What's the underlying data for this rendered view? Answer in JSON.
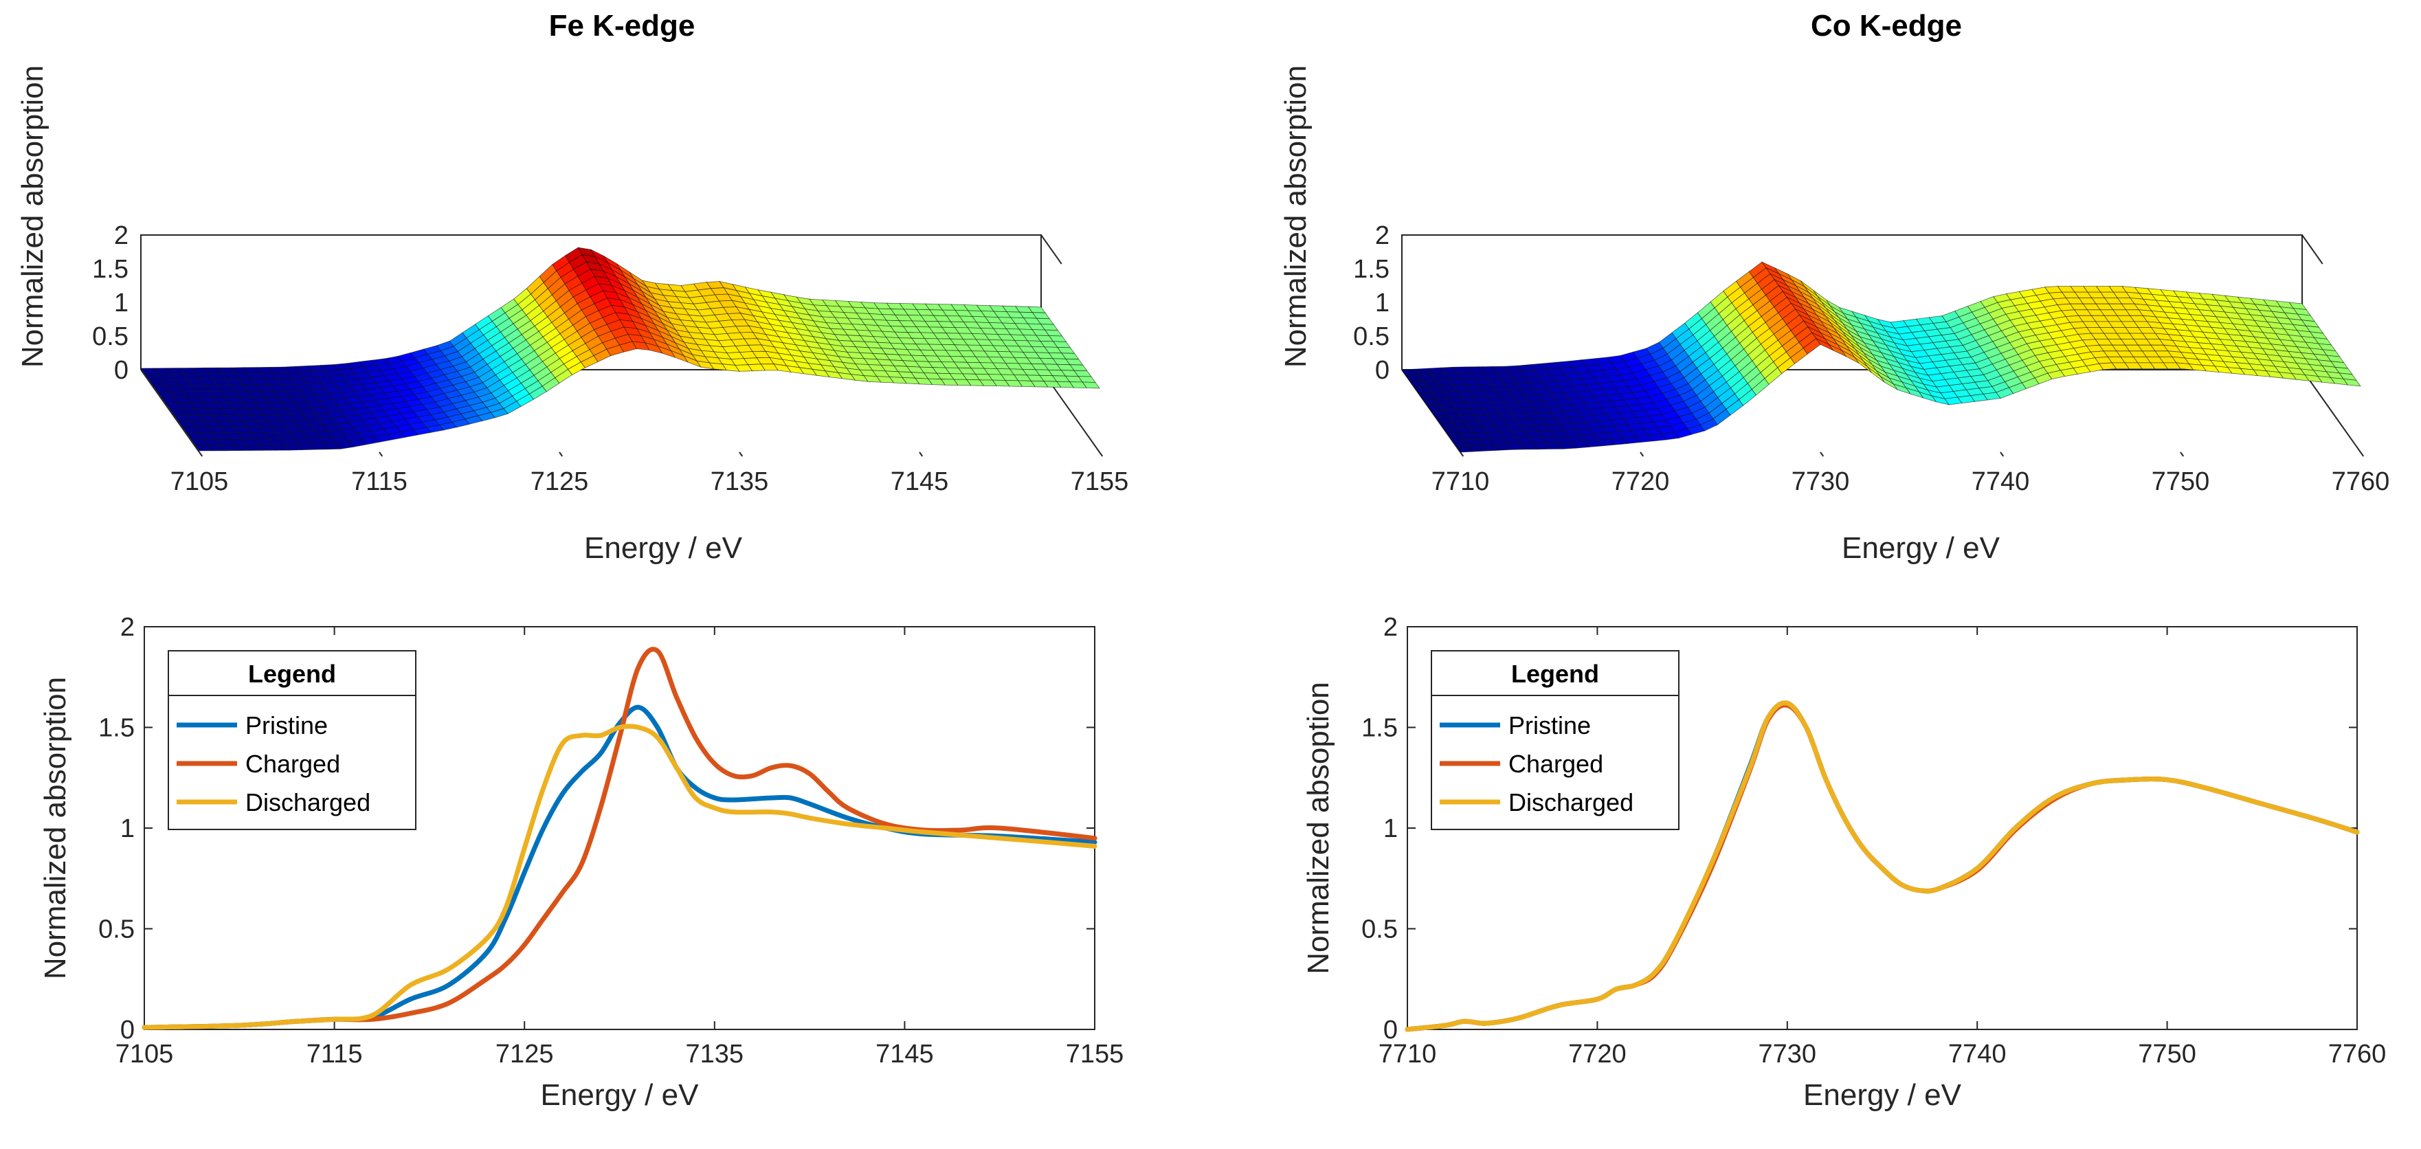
{
  "chart_data": [
    {
      "id": "fe3d",
      "type": "surface",
      "title": "Fe K-edge",
      "xlabel": "Energy / eV",
      "ylabel": "Normalized absorption",
      "xlim": [
        7105,
        7155
      ],
      "zlim": [
        0,
        2
      ],
      "xticks": [
        "7105",
        "7115",
        "7125",
        "7135",
        "7145",
        "7155"
      ],
      "zticks": [
        "2",
        "1.5",
        "1",
        "0.5",
        "0"
      ],
      "front_profile": {
        "x": [
          7105,
          7110,
          7113,
          7116,
          7119,
          7122,
          7124,
          7126,
          7128,
          7129.5,
          7131,
          7133,
          7135,
          7137,
          7139,
          7142,
          7146,
          7150,
          7155
        ],
        "y": [
          0.02,
          0.03,
          0.05,
          0.2,
          0.35,
          0.55,
          0.85,
          1.2,
          1.45,
          1.55,
          1.45,
          1.25,
          1.2,
          1.22,
          1.15,
          1.05,
          1.0,
          0.98,
          0.95
        ]
      },
      "back_profile": {
        "x": [
          7105,
          7110,
          7113,
          7116,
          7119,
          7122,
          7124,
          7126,
          7128,
          7129.5,
          7131,
          7133,
          7135,
          7137,
          7139,
          7142,
          7146,
          7150,
          7155
        ],
        "y": [
          0.02,
          0.03,
          0.04,
          0.08,
          0.18,
          0.4,
          0.75,
          1.1,
          1.6,
          1.85,
          1.65,
          1.3,
          1.25,
          1.32,
          1.2,
          1.05,
          0.99,
          0.97,
          0.93
        ]
      }
    },
    {
      "id": "co3d",
      "type": "surface",
      "title": "Co K-edge",
      "xlabel": "Energy / eV",
      "ylabel": "Normalized absorption",
      "xlim": [
        7710,
        7760
      ],
      "zlim": [
        0,
        2
      ],
      "xticks": [
        "7710",
        "7720",
        "7730",
        "7740",
        "7750",
        "7760"
      ],
      "zticks": [
        "2",
        "1.5",
        "1",
        "0.5",
        "0"
      ],
      "front_profile": {
        "x": [
          7710,
          7713,
          7716,
          7719,
          7722,
          7724,
          7726,
          7728,
          7730,
          7732,
          7734,
          7737,
          7740,
          7743,
          7746,
          7750,
          7755,
          7760
        ],
        "y": [
          0.0,
          0.04,
          0.05,
          0.12,
          0.2,
          0.35,
          0.75,
          1.2,
          1.6,
          1.35,
          0.95,
          0.7,
          0.8,
          1.1,
          1.24,
          1.24,
          1.12,
          0.98
        ]
      },
      "back_profile": {
        "x": [
          7710,
          7713,
          7716,
          7719,
          7722,
          7724,
          7726,
          7728,
          7730,
          7732,
          7734,
          7737,
          7740,
          7743,
          7746,
          7750,
          7755,
          7760
        ],
        "y": [
          0.0,
          0.04,
          0.05,
          0.12,
          0.2,
          0.35,
          0.75,
          1.2,
          1.6,
          1.35,
          0.95,
          0.7,
          0.8,
          1.1,
          1.24,
          1.24,
          1.12,
          0.98
        ]
      }
    },
    {
      "id": "fe2d",
      "type": "line",
      "title": "",
      "xlabel": "Energy / eV",
      "ylabel": "Normalized absorption",
      "xlim": [
        7105,
        7155
      ],
      "ylim": [
        0,
        2
      ],
      "xticks": [
        "7105",
        "7115",
        "7125",
        "7135",
        "7145",
        "7155"
      ],
      "yticks": [
        "0",
        "0.5",
        "1",
        "1.5",
        "2"
      ],
      "legend": {
        "title": "Legend",
        "position": "top-left"
      },
      "series": [
        {
          "name": "Pristine",
          "color": "#0072BD",
          "x": [
            7105,
            7110,
            7113,
            7115,
            7117,
            7119,
            7121,
            7123,
            7124,
            7125,
            7126,
            7127,
            7128,
            7129,
            7130,
            7131,
            7132,
            7133,
            7134,
            7135,
            7136,
            7138,
            7139,
            7140,
            7142,
            7144,
            7146,
            7150,
            7155
          ],
          "y": [
            0.01,
            0.02,
            0.04,
            0.05,
            0.06,
            0.15,
            0.22,
            0.38,
            0.55,
            0.78,
            1.0,
            1.17,
            1.28,
            1.37,
            1.52,
            1.6,
            1.5,
            1.3,
            1.2,
            1.15,
            1.14,
            1.15,
            1.15,
            1.12,
            1.05,
            1.0,
            0.97,
            0.96,
            0.93
          ]
        },
        {
          "name": "Charged",
          "color": "#D95319",
          "x": [
            7105,
            7110,
            7113,
            7115,
            7117,
            7119,
            7121,
            7123,
            7124,
            7125,
            7126,
            7127,
            7128,
            7129,
            7130,
            7131,
            7132,
            7133,
            7134,
            7135,
            7136,
            7137,
            7138,
            7139,
            7140,
            7141,
            7142,
            7144,
            7146,
            7148,
            7150,
            7155
          ],
          "y": [
            0.01,
            0.02,
            0.04,
            0.05,
            0.05,
            0.08,
            0.13,
            0.25,
            0.32,
            0.42,
            0.55,
            0.68,
            0.82,
            1.1,
            1.45,
            1.8,
            1.88,
            1.65,
            1.45,
            1.32,
            1.26,
            1.26,
            1.3,
            1.31,
            1.27,
            1.18,
            1.1,
            1.02,
            0.99,
            0.99,
            1.0,
            0.95
          ]
        },
        {
          "name": "Discharged",
          "color": "#EDB120",
          "x": [
            7105,
            7110,
            7113,
            7115,
            7117,
            7119,
            7121,
            7123,
            7124,
            7125,
            7126,
            7127,
            7128,
            7129,
            7130,
            7131,
            7132,
            7133,
            7134,
            7135,
            7136,
            7138,
            7139,
            7140,
            7142,
            7144,
            7146,
            7150,
            7155
          ],
          "y": [
            0.01,
            0.02,
            0.04,
            0.05,
            0.07,
            0.22,
            0.3,
            0.45,
            0.6,
            0.9,
            1.2,
            1.42,
            1.46,
            1.46,
            1.5,
            1.5,
            1.45,
            1.3,
            1.15,
            1.1,
            1.08,
            1.08,
            1.07,
            1.05,
            1.02,
            1.0,
            0.98,
            0.95,
            0.91
          ]
        }
      ]
    },
    {
      "id": "co2d",
      "type": "line",
      "title": "",
      "xlabel": "Energy / eV",
      "ylabel": "Normalized absoption",
      "xlim": [
        7710,
        7760
      ],
      "ylim": [
        0,
        2
      ],
      "xticks": [
        "7710",
        "7720",
        "7730",
        "7740",
        "7750",
        "7760"
      ],
      "yticks": [
        "0",
        "0.5",
        "1",
        "1.5",
        "2"
      ],
      "legend": {
        "title": "Legend",
        "position": "top-left"
      },
      "series": [
        {
          "name": "Pristine",
          "color": "#0072BD",
          "x": [
            7710,
            7712,
            7713,
            7714,
            7715,
            7716,
            7718,
            7720,
            7721,
            7722,
            7723,
            7724,
            7726,
            7728,
            7729,
            7730,
            7731,
            7732,
            7733,
            7734,
            7735,
            7736,
            7737,
            7738,
            7740,
            7742,
            7744,
            7746,
            7748,
            7750,
            7752,
            7755,
            7758,
            7760
          ],
          "y": [
            0.0,
            0.02,
            0.04,
            0.03,
            0.04,
            0.06,
            0.12,
            0.15,
            0.2,
            0.22,
            0.28,
            0.42,
            0.82,
            1.3,
            1.55,
            1.62,
            1.5,
            1.25,
            1.05,
            0.9,
            0.8,
            0.72,
            0.69,
            0.7,
            0.8,
            1.0,
            1.15,
            1.22,
            1.24,
            1.24,
            1.2,
            1.12,
            1.04,
            0.98
          ]
        },
        {
          "name": "Charged",
          "color": "#D95319",
          "x": [
            7710,
            7712,
            7713,
            7714,
            7715,
            7716,
            7718,
            7720,
            7721,
            7722,
            7723,
            7724,
            7726,
            7728,
            7729,
            7730,
            7731,
            7732,
            7733,
            7734,
            7735,
            7736,
            7737,
            7738,
            7740,
            7742,
            7744,
            7746,
            7748,
            7750,
            7752,
            7755,
            7758,
            7760
          ],
          "y": [
            0.0,
            0.02,
            0.04,
            0.03,
            0.04,
            0.06,
            0.12,
            0.15,
            0.2,
            0.22,
            0.27,
            0.41,
            0.8,
            1.28,
            1.54,
            1.61,
            1.5,
            1.25,
            1.05,
            0.9,
            0.8,
            0.72,
            0.69,
            0.7,
            0.79,
            0.99,
            1.14,
            1.22,
            1.24,
            1.24,
            1.2,
            1.12,
            1.04,
            0.98
          ]
        },
        {
          "name": "Discharged",
          "color": "#EDB120",
          "x": [
            7710,
            7712,
            7713,
            7714,
            7715,
            7716,
            7718,
            7720,
            7721,
            7722,
            7723,
            7724,
            7726,
            7728,
            7729,
            7730,
            7731,
            7732,
            7733,
            7734,
            7735,
            7736,
            7737,
            7738,
            7740,
            7742,
            7744,
            7746,
            7748,
            7750,
            7752,
            7755,
            7758,
            7760
          ],
          "y": [
            0.0,
            0.02,
            0.04,
            0.03,
            0.04,
            0.06,
            0.12,
            0.15,
            0.2,
            0.22,
            0.28,
            0.42,
            0.82,
            1.29,
            1.55,
            1.62,
            1.5,
            1.25,
            1.05,
            0.9,
            0.8,
            0.72,
            0.69,
            0.7,
            0.8,
            1.0,
            1.15,
            1.22,
            1.24,
            1.24,
            1.2,
            1.12,
            1.04,
            0.98
          ]
        }
      ]
    }
  ]
}
